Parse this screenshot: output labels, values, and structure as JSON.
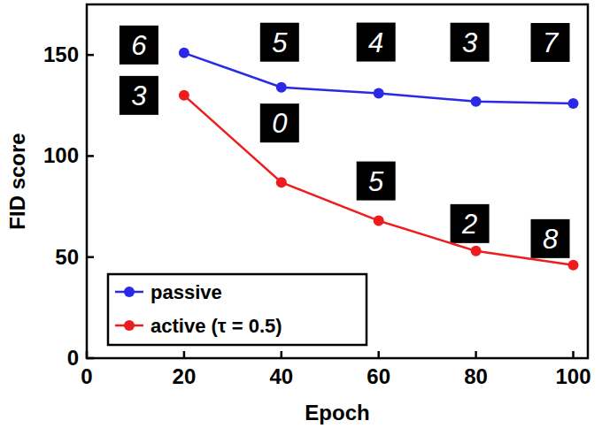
{
  "chart_data": {
    "type": "line",
    "x_label": "Epoch",
    "y_label": "FID score",
    "x": [
      20,
      40,
      60,
      80,
      100
    ],
    "series": [
      {
        "name": "passive",
        "color": "#2a2ae6",
        "marker": "circle",
        "values": [
          151,
          134,
          131,
          127,
          126
        ],
        "annotations": [
          "6",
          "5",
          "4",
          "3",
          "7"
        ]
      },
      {
        "name": "active (τ = 0.5)",
        "color": "#ee1c1c",
        "marker": "circle",
        "values": [
          130,
          87,
          68,
          53,
          46
        ],
        "annotations": [
          "3",
          "0",
          "5",
          "2",
          "8"
        ]
      }
    ],
    "xlim": [
      0,
      103
    ],
    "ylim": [
      0,
      175
    ],
    "xticks": [
      0,
      20,
      40,
      60,
      80,
      100
    ],
    "yticks": [
      0,
      50,
      100,
      150
    ],
    "grid": false,
    "legend": "lower left"
  }
}
